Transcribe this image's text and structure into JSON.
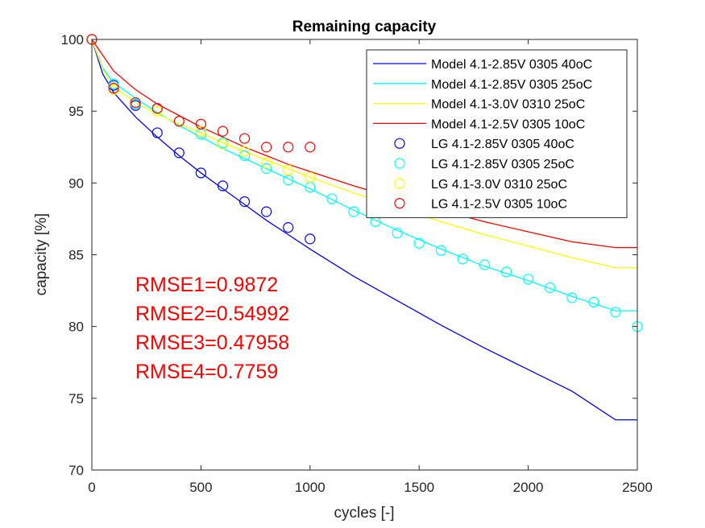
{
  "chart_data": {
    "type": "line",
    "title": "Remaining capacity",
    "xlabel": "cycles [-]",
    "ylabel": "capacity [%]",
    "xlim": [
      0,
      2500
    ],
    "ylim": [
      70,
      100
    ],
    "xticks": [
      0,
      500,
      1000,
      1500,
      2000,
      2500
    ],
    "yticks": [
      70,
      75,
      80,
      85,
      90,
      95,
      100
    ],
    "grid": false,
    "legend_position": "top-right",
    "annotations": [
      "RMSE1=0.9872",
      "RMSE2=0.54992",
      "RMSE3=0.47958",
      "RMSE4=0.7759"
    ],
    "annotation_color": "#ff0000",
    "series": [
      {
        "name": "Model 4.1-2.85V 0305 40oC",
        "kind": "line",
        "color": "#0000ff",
        "x": [
          0,
          50,
          100,
          200,
          300,
          400,
          500,
          600,
          700,
          800,
          900,
          1000,
          1200,
          1400,
          1600,
          1800,
          2000,
          2200,
          2400,
          2500
        ],
        "y": [
          100,
          97.6,
          96.3,
          94.6,
          93.2,
          91.9,
          90.7,
          89.6,
          88.5,
          87.4,
          86.4,
          85.4,
          83.5,
          81.8,
          80.1,
          78.5,
          77.0,
          75.5,
          73.5,
          73.5
        ]
      },
      {
        "name": "Model 4.1-2.85V 0305 25oC",
        "kind": "line",
        "color": "#00ffff",
        "x": [
          0,
          50,
          100,
          200,
          300,
          400,
          500,
          600,
          700,
          800,
          900,
          1000,
          1200,
          1400,
          1600,
          1800,
          2000,
          2200,
          2400,
          2500
        ],
        "y": [
          100,
          98.0,
          97.0,
          95.9,
          94.9,
          94.0,
          93.2,
          92.4,
          91.7,
          91.0,
          90.3,
          89.6,
          88.1,
          86.7,
          85.4,
          84.2,
          83.2,
          82.1,
          81.1,
          81.1
        ]
      },
      {
        "name": "Model 4.1-3.0V 0310 25oC",
        "kind": "line",
        "color": "#ffff00",
        "x": [
          0,
          50,
          100,
          200,
          300,
          400,
          500,
          600,
          700,
          800,
          900,
          1000,
          1200,
          1400,
          1600,
          1800,
          2000,
          2200,
          2400,
          2500
        ],
        "y": [
          100,
          97.9,
          96.7,
          95.6,
          94.8,
          94.1,
          93.5,
          92.8,
          92.2,
          91.6,
          91.0,
          90.4,
          89.3,
          88.3,
          87.3,
          86.4,
          85.6,
          84.8,
          84.1,
          84.1
        ]
      },
      {
        "name": "Model 4.1-2.5V 0305 10oC",
        "kind": "line",
        "color": "#ff0000",
        "x": [
          0,
          50,
          100,
          200,
          300,
          400,
          500,
          600,
          700,
          800,
          900,
          1000,
          1200,
          1400,
          1600,
          1800,
          2000,
          2200,
          2400,
          2500
        ],
        "y": [
          100,
          98.9,
          97.8,
          96.5,
          95.5,
          94.7,
          93.9,
          93.2,
          92.5,
          91.9,
          91.3,
          90.8,
          89.8,
          88.9,
          88.1,
          87.3,
          86.6,
          85.9,
          85.5,
          85.5
        ]
      },
      {
        "name": "LG 4.1-2.85V 0305 40oC",
        "kind": "marker",
        "color": "#0000ff",
        "x": [
          0,
          100,
          200,
          300,
          400,
          500,
          600,
          700,
          800,
          900,
          1000
        ],
        "y": [
          100,
          96.8,
          95.4,
          93.5,
          92.1,
          90.7,
          89.8,
          88.7,
          88.0,
          86.9,
          86.1
        ]
      },
      {
        "name": "LG 4.1-2.85V 0305 25oC",
        "kind": "marker",
        "color": "#00ffff",
        "x": [
          0,
          100,
          200,
          300,
          400,
          500,
          600,
          700,
          800,
          900,
          1000,
          1100,
          1200,
          1300,
          1400,
          1500,
          1600,
          1700,
          1800,
          1900,
          2000,
          2100,
          2200,
          2300,
          2400,
          2500
        ],
        "y": [
          100,
          96.9,
          95.5,
          95.2,
          94.3,
          93.4,
          92.8,
          91.9,
          91.0,
          90.2,
          89.7,
          88.9,
          88.0,
          87.3,
          86.5,
          85.8,
          85.3,
          84.7,
          84.3,
          83.8,
          83.3,
          82.7,
          82.0,
          81.7,
          81.0,
          80.0
        ]
      },
      {
        "name": "LG 4.1-3.0V 0310 25oC",
        "kind": "marker",
        "color": "#ffff00",
        "x": [
          0,
          100,
          200,
          300,
          400,
          500,
          600,
          700,
          800,
          900,
          1000
        ],
        "y": [
          100,
          96.5,
          95.6,
          95.0,
          94.3,
          93.6,
          92.7,
          92.2,
          91.4,
          90.9,
          90.4
        ]
      },
      {
        "name": "LG 4.1-2.5V 0305 10oC",
        "kind": "marker",
        "color": "#ff0000",
        "x": [
          0,
          100,
          200,
          300,
          400,
          500,
          600,
          700,
          800,
          900,
          1000
        ],
        "y": [
          100,
          96.6,
          95.6,
          95.2,
          94.3,
          94.1,
          93.6,
          93.1,
          92.5,
          92.5,
          92.5
        ]
      }
    ]
  }
}
